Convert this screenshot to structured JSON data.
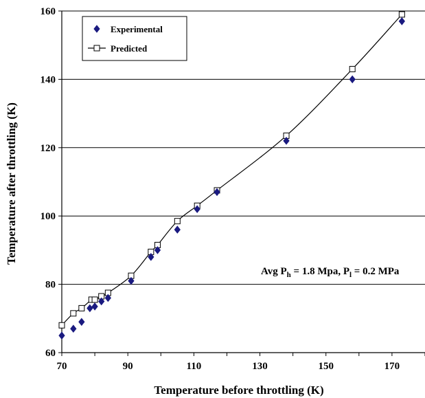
{
  "chart_data": {
    "type": "scatter",
    "title": "",
    "xlabel": "Temperature before throttling (K)",
    "ylabel": "Temperature after throttling (K)",
    "xlim": [
      70,
      180
    ],
    "ylim": [
      60,
      160
    ],
    "xticks": [
      70,
      90,
      110,
      130,
      150,
      170
    ],
    "yticks": [
      60,
      80,
      100,
      120,
      140,
      160
    ],
    "grid": "horizontal",
    "legend_position": "top-left",
    "series": [
      {
        "name": "Experimental",
        "marker": "diamond",
        "color": "#1a1a80",
        "x": [
          70,
          73.5,
          76,
          78.5,
          80,
          82,
          84,
          91,
          97,
          99,
          105,
          111,
          117,
          138,
          158,
          173
        ],
        "y": [
          65,
          67,
          69,
          73,
          73.5,
          75,
          76,
          81,
          88,
          90,
          96,
          102,
          107,
          122,
          140,
          157
        ]
      },
      {
        "name": "Predicted",
        "marker": "open-square",
        "color": "#000000",
        "line": "solid",
        "x": [
          70,
          73.5,
          76,
          79,
          80,
          82,
          84,
          91,
          97,
          99,
          105,
          111,
          117,
          138,
          158,
          173
        ],
        "y": [
          68,
          71.5,
          73,
          75.5,
          75.5,
          76.5,
          77.5,
          82.5,
          89.5,
          91.5,
          98.5,
          103,
          107.5,
          123.5,
          143,
          159
        ]
      }
    ],
    "annotation": {
      "parts": [
        {
          "text": "Avg P",
          "kind": "normal"
        },
        {
          "text": "h",
          "kind": "sub"
        },
        {
          "text": " = 1.8 Mpa, P",
          "kind": "normal"
        },
        {
          "text": "l",
          "kind": "sub"
        },
        {
          "text": " = 0.2 MPa",
          "kind": "normal"
        }
      ]
    }
  }
}
